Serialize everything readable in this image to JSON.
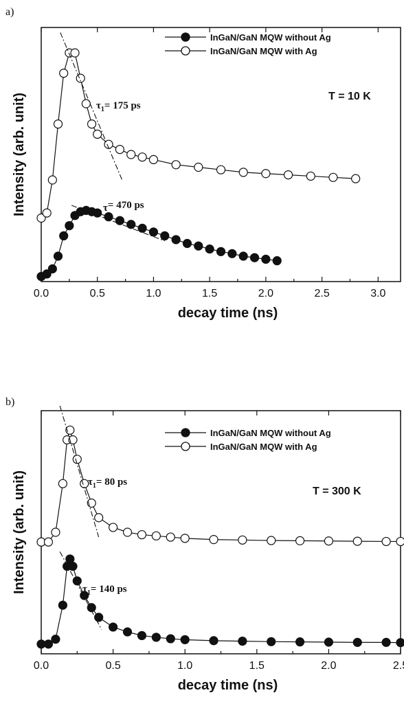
{
  "chart_data": [
    {
      "panel_label": "a)",
      "type": "scatter",
      "xlabel": "decay time (ns)",
      "ylabel": "Intensity (arb. unit)",
      "xlim": [
        0,
        3.2
      ],
      "ylim": [
        0,
        1
      ],
      "xticks": [
        "0.0",
        "0.5",
        "1.0",
        "1.5",
        "2.0",
        "2.5",
        "3.0"
      ],
      "xtick_values": [
        0,
        0.5,
        1.0,
        1.5,
        2.0,
        2.5,
        3.0
      ],
      "yticks_shown": false,
      "temperature": "T = 10 K",
      "legend_position": "top-right",
      "legend": [
        {
          "label": "InGaN/GaN MQW without Ag",
          "marker": "filled-circle"
        },
        {
          "label": "InGaN/GaN MQW with Ag",
          "marker": "open-circle"
        }
      ],
      "annotations": [
        {
          "prefix": "τ",
          "sub": "1",
          "text": "= 175 ps"
        },
        {
          "prefix": "τ",
          "sub": "",
          "text": "= 470 ps"
        }
      ],
      "series": [
        {
          "name": "InGaN/GaN MQW without Ag",
          "marker": "filled",
          "x": [
            0.0,
            0.05,
            0.1,
            0.15,
            0.2,
            0.25,
            0.3,
            0.35,
            0.4,
            0.45,
            0.5,
            0.6,
            0.7,
            0.8,
            0.9,
            1.0,
            1.1,
            1.2,
            1.3,
            1.4,
            1.5,
            1.6,
            1.7,
            1.8,
            1.9,
            2.0,
            2.1
          ],
          "y": [
            0.02,
            0.03,
            0.05,
            0.1,
            0.18,
            0.22,
            0.26,
            0.275,
            0.28,
            0.275,
            0.27,
            0.255,
            0.24,
            0.225,
            0.21,
            0.195,
            0.18,
            0.165,
            0.15,
            0.14,
            0.128,
            0.118,
            0.11,
            0.1,
            0.094,
            0.088,
            0.082
          ]
        },
        {
          "name": "InGaN/GaN MQW with Ag",
          "marker": "open",
          "x": [
            0.0,
            0.05,
            0.1,
            0.15,
            0.2,
            0.25,
            0.3,
            0.35,
            0.4,
            0.45,
            0.5,
            0.6,
            0.7,
            0.8,
            0.9,
            1.0,
            1.2,
            1.4,
            1.6,
            1.8,
            2.0,
            2.2,
            2.4,
            2.6,
            2.8
          ],
          "y": [
            0.25,
            0.27,
            0.4,
            0.62,
            0.82,
            0.9,
            0.9,
            0.8,
            0.7,
            0.62,
            0.58,
            0.54,
            0.52,
            0.5,
            0.49,
            0.48,
            0.46,
            0.45,
            0.44,
            0.43,
            0.425,
            0.42,
            0.415,
            0.41,
            0.405
          ]
        }
      ]
    },
    {
      "panel_label": "b)",
      "type": "scatter",
      "xlabel": "decay time (ns)",
      "ylabel": "Intensity (arb. unit)",
      "xlim": [
        0,
        2.5
      ],
      "ylim": [
        0,
        1
      ],
      "xticks": [
        "0.0",
        "0.5",
        "1.0",
        "1.5",
        "2.0",
        "2.5"
      ],
      "xtick_values": [
        0,
        0.5,
        1.0,
        1.5,
        2.0,
        2.5
      ],
      "yticks_shown": false,
      "temperature": "T = 300 K",
      "legend_position": "top-right",
      "legend": [
        {
          "label": "InGaN/GaN MQW without Ag",
          "marker": "filled-circle"
        },
        {
          "label": "InGaN/GaN MQW with Ag",
          "marker": "open-circle"
        }
      ],
      "annotations": [
        {
          "prefix": "τ",
          "sub": "1",
          "text": "= 80 ps"
        },
        {
          "prefix": "τ",
          "sub": "1",
          "text": "= 140 ps"
        }
      ],
      "series": [
        {
          "name": "InGaN/GaN MQW without Ag",
          "marker": "filled",
          "x": [
            0.0,
            0.05,
            0.1,
            0.15,
            0.18,
            0.2,
            0.22,
            0.25,
            0.3,
            0.35,
            0.4,
            0.5,
            0.6,
            0.7,
            0.8,
            0.9,
            1.0,
            1.2,
            1.4,
            1.6,
            1.8,
            2.0,
            2.2,
            2.4,
            2.5
          ],
          "y": [
            0.04,
            0.04,
            0.06,
            0.2,
            0.36,
            0.39,
            0.36,
            0.3,
            0.24,
            0.19,
            0.15,
            0.11,
            0.09,
            0.075,
            0.068,
            0.062,
            0.058,
            0.054,
            0.052,
            0.05,
            0.049,
            0.048,
            0.047,
            0.047,
            0.046
          ]
        },
        {
          "name": "InGaN/GaN MQW with Ag",
          "marker": "open",
          "x": [
            0.0,
            0.05,
            0.1,
            0.15,
            0.18,
            0.2,
            0.22,
            0.25,
            0.3,
            0.35,
            0.4,
            0.5,
            0.6,
            0.7,
            0.8,
            0.9,
            1.0,
            1.2,
            1.4,
            1.6,
            1.8,
            2.0,
            2.2,
            2.4,
            2.5
          ],
          "y": [
            0.46,
            0.46,
            0.5,
            0.7,
            0.88,
            0.92,
            0.88,
            0.8,
            0.7,
            0.62,
            0.56,
            0.52,
            0.5,
            0.49,
            0.485,
            0.48,
            0.475,
            0.47,
            0.468,
            0.466,
            0.465,
            0.464,
            0.463,
            0.462,
            0.462
          ]
        }
      ]
    }
  ]
}
